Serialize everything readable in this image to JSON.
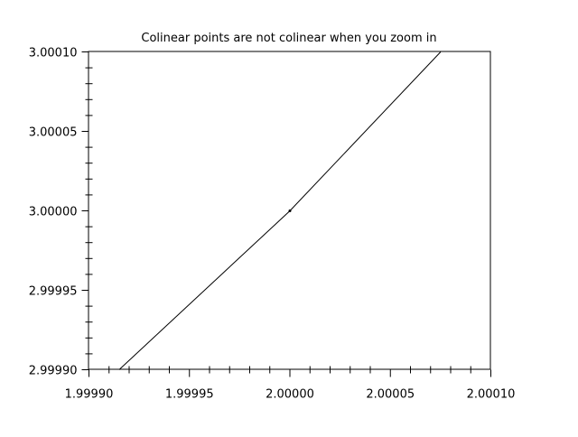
{
  "chart_data": {
    "type": "line",
    "title": "Colinear points are not colinear when you zoom in",
    "xlabel": "",
    "ylabel": "",
    "xlim": [
      1.9999,
      2.0001
    ],
    "ylim": [
      2.9999,
      3.0001
    ],
    "x_ticks": [
      "1.99990",
      "1.99995",
      "2.00000",
      "2.00005",
      "2.00010"
    ],
    "y_ticks": [
      "2.99990",
      "2.99995",
      "3.00000",
      "3.00005",
      "3.00010"
    ],
    "x_tick_values": [
      1.9999,
      1.99995,
      2.0,
      2.00005,
      2.0001
    ],
    "y_tick_values": [
      2.9999,
      2.99995,
      3.0,
      3.00005,
      3.0001
    ],
    "minor_ticks_per_interval": 4,
    "grid": false,
    "series": [
      {
        "x": [
          1.999915,
          2.0,
          2.000075
        ],
        "y": [
          2.9999,
          3.0,
          3.0001
        ],
        "color": "#000000"
      }
    ],
    "markers": [
      {
        "x": 2.0,
        "y": 3.0,
        "color": "#000000"
      }
    ]
  }
}
